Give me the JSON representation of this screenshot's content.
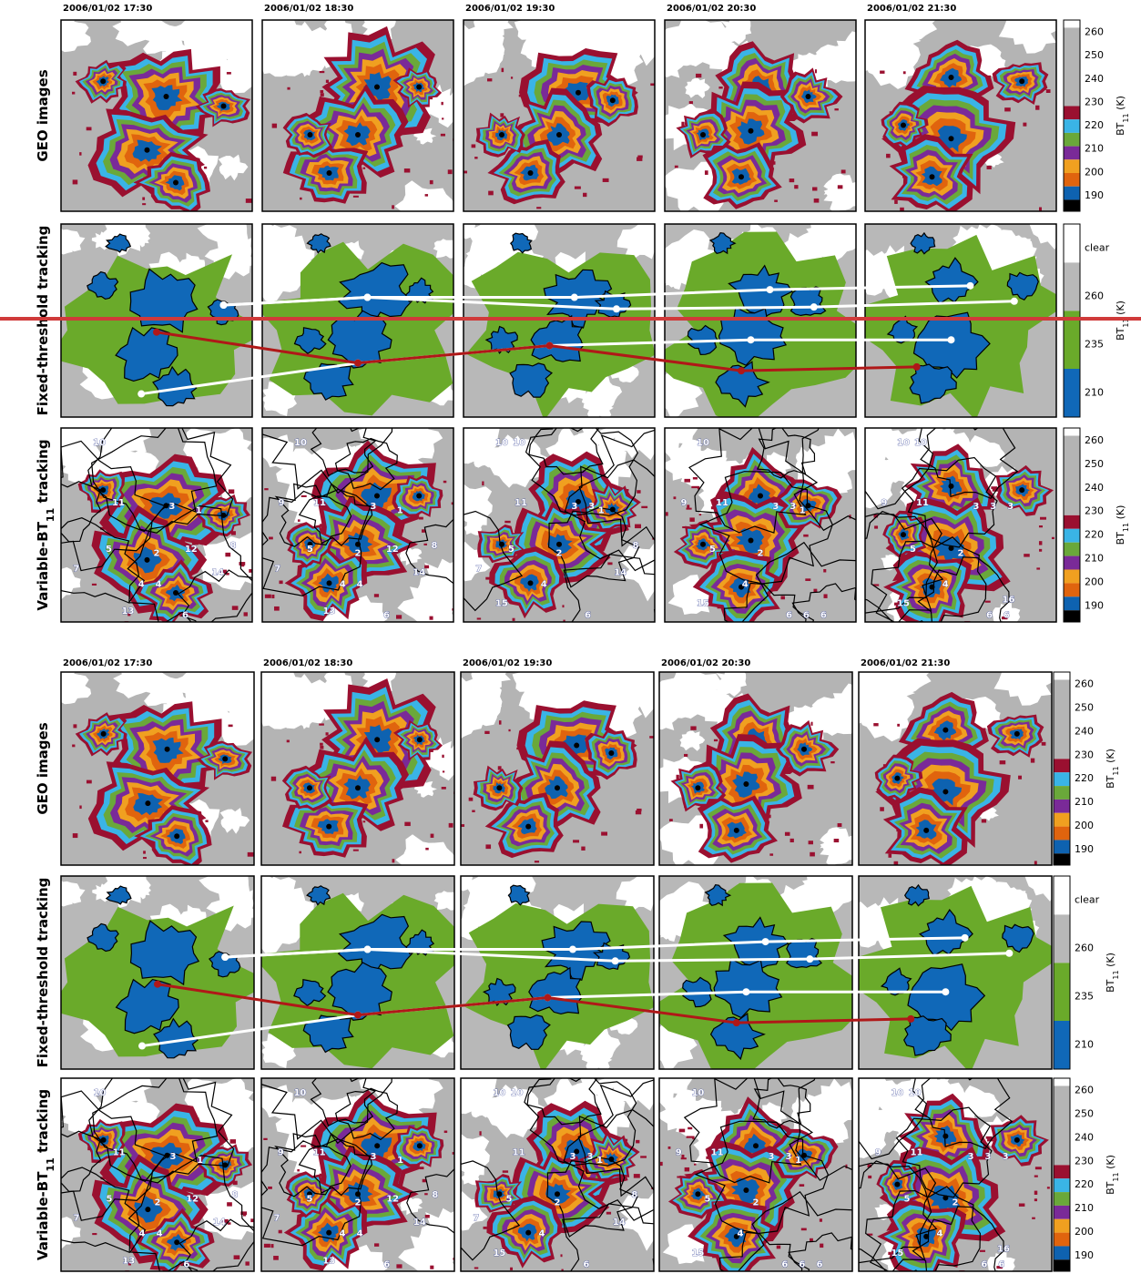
{
  "figures": [
    {
      "timestamps": [
        "2006/01/02 17:30",
        "2006/01/02 18:30",
        "2006/01/02 19:30",
        "2006/01/02 20:30",
        "2006/01/02 21:30"
      ],
      "row_labels": [
        {
          "text": "GEO images"
        },
        {
          "text": "Fixed-threshold tracking"
        },
        {
          "text": "Variable-BT",
          "sub": "11",
          "tail": " tracking"
        }
      ],
      "colorbars": [
        {
          "ticks": [
            260,
            250,
            240,
            230,
            220,
            210,
            200,
            190
          ],
          "unit": {
            "text": "BT",
            "sub": "11",
            "tail": " (K)"
          }
        },
        {
          "ticks": [
            "clear",
            260,
            235,
            210
          ],
          "unit": {
            "text": "BT",
            "sub": "11",
            "tail": " (K)"
          }
        },
        {
          "ticks": [
            260,
            250,
            240,
            230,
            220,
            210,
            200,
            190
          ],
          "unit": {
            "text": "BT",
            "sub": "11",
            "tail": " (K)"
          }
        }
      ],
      "cell_labels": [
        [
          "10",
          "11",
          "3",
          "1",
          "2",
          "12",
          "8",
          "5",
          "4",
          "14",
          "7",
          "4",
          "13",
          "6"
        ],
        [
          "10",
          "9",
          "11",
          "3",
          "1",
          "5",
          "2",
          "12",
          "8",
          "4",
          "14",
          "7",
          "4",
          "13",
          "6"
        ],
        [
          "10",
          "10",
          "11",
          "3",
          "3",
          "1",
          "8",
          "5",
          "2",
          "7",
          "14",
          "4",
          "15",
          "6"
        ],
        [
          "10",
          "9",
          "11",
          "3",
          "3",
          "1",
          "5",
          "2",
          "4",
          "6",
          "15",
          "6",
          "6"
        ],
        [
          "10",
          "10",
          "9",
          "11",
          "3",
          "3",
          "3",
          "2",
          "5",
          "4",
          "15",
          "16",
          "6",
          "6"
        ]
      ]
    },
    {
      "timestamps": [
        "2006/01/02 17:30",
        "2006/01/02 18:30",
        "2006/01/02 19:30",
        "2006/01/02 20:30",
        "2006/01/02 21:30"
      ],
      "row_labels": [
        {
          "text": "GEO images"
        },
        {
          "text": "Fixed-threshold tracking"
        },
        {
          "text": "Variable-BT",
          "sub": "11",
          "tail": " tracking"
        }
      ],
      "colorbars": [
        {
          "ticks": [
            260,
            250,
            240,
            230,
            220,
            210,
            200,
            190
          ],
          "unit": {
            "text": "BT",
            "sub": "11",
            "tail": " (K)"
          }
        },
        {
          "ticks": [
            "clear",
            260,
            235,
            210
          ],
          "unit": {
            "text": "BT",
            "sub": "11",
            "tail": " (K)"
          }
        },
        {
          "ticks": [
            260,
            250,
            240,
            230,
            220,
            210,
            200,
            190
          ],
          "unit": {
            "text": "BT",
            "sub": "11",
            "tail": " (K)"
          }
        }
      ],
      "cell_labels": [
        [
          "10",
          "11",
          "3",
          "1",
          "2",
          "12",
          "8",
          "5",
          "4",
          "14",
          "7",
          "4",
          "13",
          "6"
        ],
        [
          "10",
          "9",
          "11",
          "3",
          "1",
          "5",
          "2",
          "12",
          "8",
          "4",
          "14",
          "7",
          "4",
          "13",
          "6"
        ],
        [
          "10",
          "10",
          "11",
          "3",
          "3",
          "1",
          "8",
          "5",
          "2",
          "7",
          "14",
          "4",
          "15",
          "6"
        ],
        [
          "10",
          "9",
          "11",
          "3",
          "3",
          "1",
          "5",
          "2",
          "4",
          "6",
          "15",
          "6",
          "6"
        ],
        [
          "10",
          "10",
          "9",
          "11",
          "3",
          "3",
          "3",
          "2",
          "5",
          "4",
          "15",
          "16",
          "6",
          "6"
        ]
      ]
    }
  ]
}
